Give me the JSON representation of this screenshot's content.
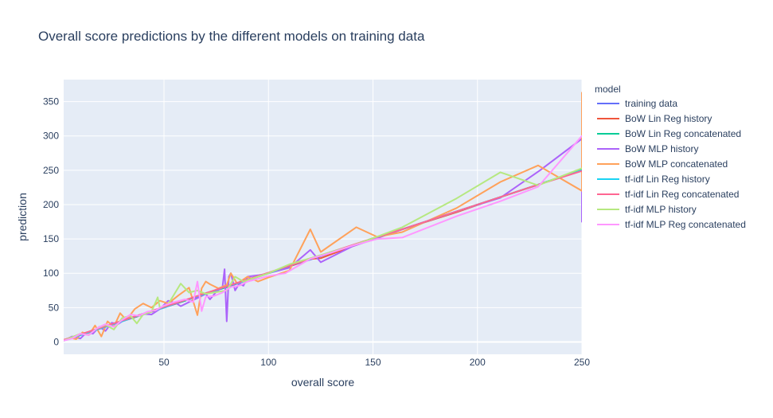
{
  "chart_data": {
    "type": "line",
    "title": "Overall score predictions by the different models on training data",
    "xlabel": "overall score",
    "ylabel": "prediction",
    "xlim": [
      2,
      250
    ],
    "ylim": [
      -18,
      382
    ],
    "xticks": [
      50,
      100,
      150,
      200,
      250
    ],
    "yticks": [
      0,
      50,
      100,
      150,
      200,
      250,
      300,
      350
    ],
    "grid": true,
    "legend_title": "model",
    "legend_position": "right",
    "series": [
      {
        "name": "training data",
        "color": "#636efa",
        "x": [
          2,
          10,
          20,
          30,
          40,
          50,
          60,
          70,
          80,
          90,
          100,
          110,
          120,
          130,
          140,
          150,
          160,
          170,
          180,
          190,
          200,
          210,
          220,
          230,
          240,
          250
        ],
        "y": [
          2,
          10,
          20,
          30,
          40,
          50,
          60,
          70,
          80,
          90,
          100,
          110,
          120,
          130,
          140,
          150,
          160,
          170,
          180,
          190,
          200,
          210,
          220,
          230,
          240,
          250
        ]
      },
      {
        "name": "BoW Lin Reg history",
        "color": "#EF553B",
        "x": [
          2,
          5,
          8,
          12,
          15,
          18,
          22,
          26,
          30,
          35,
          40,
          45,
          50,
          55,
          60,
          65,
          70,
          75,
          80,
          85,
          90,
          100,
          110,
          120,
          125,
          140,
          152,
          164,
          190,
          211,
          229,
          250
        ],
        "y": [
          3,
          6,
          9,
          12,
          16,
          19,
          23,
          27,
          31,
          35,
          40,
          45,
          51,
          55,
          60,
          66,
          70,
          76,
          80,
          86,
          90,
          100,
          110,
          121,
          122,
          139,
          152,
          164,
          189,
          211,
          229,
          250
        ]
      },
      {
        "name": "BoW Lin Reg concatenated",
        "color": "#00cc96",
        "x": [
          2,
          10,
          20,
          30,
          40,
          50,
          60,
          70,
          80,
          90,
          100,
          110,
          120,
          130,
          140,
          150,
          164,
          190,
          211,
          229,
          250
        ],
        "y": [
          2,
          11,
          20,
          31,
          40,
          51,
          60,
          71,
          80,
          91,
          100,
          111,
          121,
          131,
          140,
          151,
          164,
          190,
          211,
          229,
          251
        ]
      },
      {
        "name": "BoW MLP history",
        "color": "#ab63fa",
        "x": [
          2,
          6,
          10,
          13,
          16,
          19,
          22,
          25,
          28,
          32,
          36,
          40,
          44,
          48,
          52,
          56,
          58,
          62,
          66,
          70,
          72,
          75,
          78,
          79,
          80,
          81,
          82,
          84,
          86,
          88,
          90,
          95,
          100,
          110,
          120,
          125,
          140,
          152,
          164,
          190,
          211,
          230,
          250,
          250
        ],
        "y": [
          2,
          8,
          5,
          14,
          12,
          22,
          16,
          28,
          26,
          34,
          37,
          41,
          40,
          48,
          60,
          56,
          52,
          58,
          64,
          70,
          62,
          73,
          80,
          106,
          30,
          95,
          100,
          75,
          85,
          82,
          95,
          97,
          100,
          108,
          134,
          116,
          139,
          151,
          164,
          190,
          210,
          250,
          296,
          175
        ]
      },
      {
        "name": "BoW MLP concatenated",
        "color": "#FFA15A",
        "x": [
          2,
          5,
          8,
          11,
          14,
          17,
          20,
          23,
          26,
          29,
          32,
          36,
          40,
          44,
          48,
          52,
          57,
          62,
          66,
          68,
          70,
          72,
          76,
          80,
          82,
          85,
          90,
          95,
          100,
          110,
          120,
          125,
          142,
          152,
          164,
          190,
          211,
          229,
          250,
          250
        ],
        "y": [
          2,
          6,
          4,
          14,
          10,
          24,
          8,
          30,
          22,
          42,
          32,
          48,
          56,
          50,
          60,
          56,
          68,
          79,
          39,
          78,
          88,
          84,
          78,
          83,
          100,
          85,
          95,
          88,
          94,
          104,
          164,
          131,
          167,
          153,
          160,
          195,
          233,
          257,
          220,
          363
        ]
      },
      {
        "name": "tf-idf Lin Reg history",
        "color": "#19d3f3",
        "x": [
          2,
          10,
          20,
          30,
          40,
          50,
          60,
          70,
          80,
          90,
          100,
          110,
          120,
          130,
          140,
          150,
          164,
          190,
          211,
          229,
          250
        ],
        "y": [
          2,
          10,
          20,
          30,
          41,
          50,
          61,
          70,
          81,
          90,
          100,
          111,
          121,
          131,
          140,
          151,
          164,
          190,
          211,
          229,
          250
        ]
      },
      {
        "name": "tf-idf Lin Reg concatenated",
        "color": "#FF6692",
        "x": [
          2,
          10,
          20,
          30,
          40,
          50,
          60,
          70,
          80,
          90,
          100,
          110,
          120,
          130,
          140,
          150,
          164,
          190,
          211,
          229,
          250
        ],
        "y": [
          3,
          11,
          21,
          31,
          41,
          51,
          61,
          71,
          81,
          91,
          101,
          111,
          121,
          131,
          141,
          151,
          164,
          190,
          211,
          229,
          249
        ]
      },
      {
        "name": "tf-idf MLP history",
        "color": "#B6E880",
        "x": [
          2,
          6,
          10,
          14,
          18,
          22,
          26,
          30,
          34,
          37,
          40,
          44,
          47,
          48,
          52,
          58,
          62,
          66,
          70,
          76,
          80,
          84,
          88,
          95,
          100,
          110,
          120,
          130,
          140,
          150,
          164,
          190,
          211,
          229,
          250
        ],
        "y": [
          2,
          7,
          12,
          10,
          20,
          25,
          18,
          35,
          38,
          27,
          40,
          44,
          65,
          50,
          55,
          85,
          72,
          75,
          70,
          73,
          75,
          95,
          88,
          95,
          100,
          113,
          122,
          131,
          140,
          151,
          167,
          209,
          247,
          228,
          253
        ]
      },
      {
        "name": "tf-idf MLP Reg concatenated",
        "color": "#FF97FF",
        "x": [
          2,
          6,
          10,
          14,
          18,
          22,
          26,
          30,
          34,
          38,
          42,
          46,
          50,
          55,
          60,
          64,
          66,
          68,
          70,
          74,
          78,
          82,
          86,
          90,
          95,
          100,
          108,
          120,
          130,
          140,
          152,
          164,
          190,
          211,
          229,
          250
        ],
        "y": [
          2,
          5,
          12,
          10,
          20,
          26,
          22,
          32,
          40,
          38,
          44,
          46,
          53,
          58,
          62,
          58,
          88,
          45,
          66,
          67,
          72,
          80,
          82,
          88,
          92,
          96,
          100,
          121,
          130,
          140,
          150,
          152,
          183,
          205,
          226,
          300
        ]
      }
    ]
  }
}
